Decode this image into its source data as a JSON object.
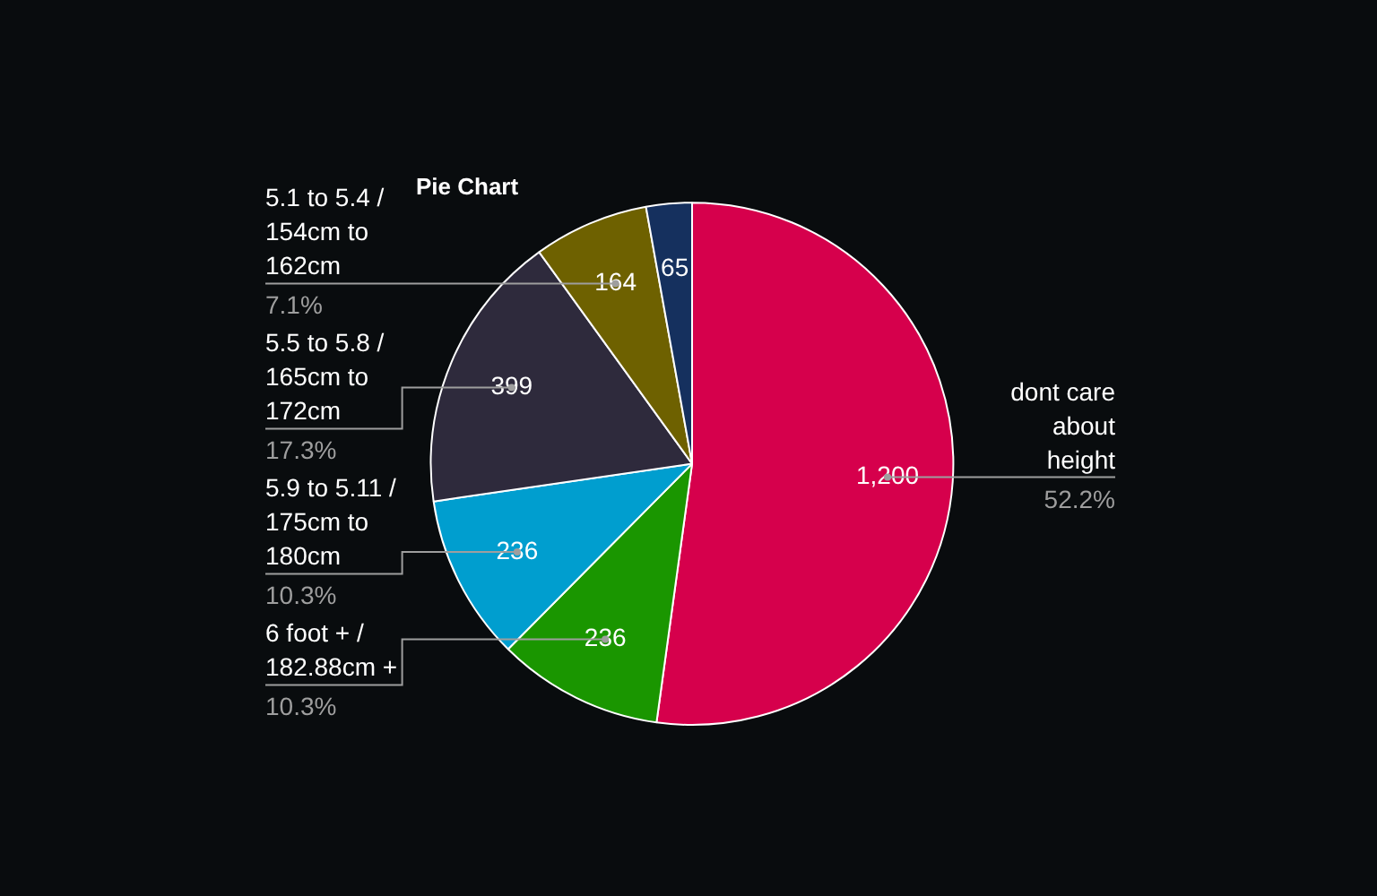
{
  "chart_data": {
    "type": "pie",
    "title": "Pie Chart",
    "categories": [
      "dont care about height",
      "6 foot + / 182.88cm +",
      "5.9 to 5.11 / 175cm to 180cm",
      "5.5 to 5.8 / 165cm to 172cm",
      "5.1 to 5.4 / 154cm to 162cm",
      null
    ],
    "values": [
      1200,
      236,
      236,
      399,
      164,
      65
    ],
    "colors": [
      "#d6004c",
      "#1a9600",
      "#009ecf",
      "#2e2a3c",
      "#6e6100",
      "#15305e"
    ],
    "value_labels": [
      "1,200",
      "236",
      "236",
      "399",
      "164",
      "65"
    ],
    "annotations": [
      "52.2%",
      "10.3%",
      "10.3%",
      "17.3%",
      "7.1%"
    ],
    "legend": false
  }
}
